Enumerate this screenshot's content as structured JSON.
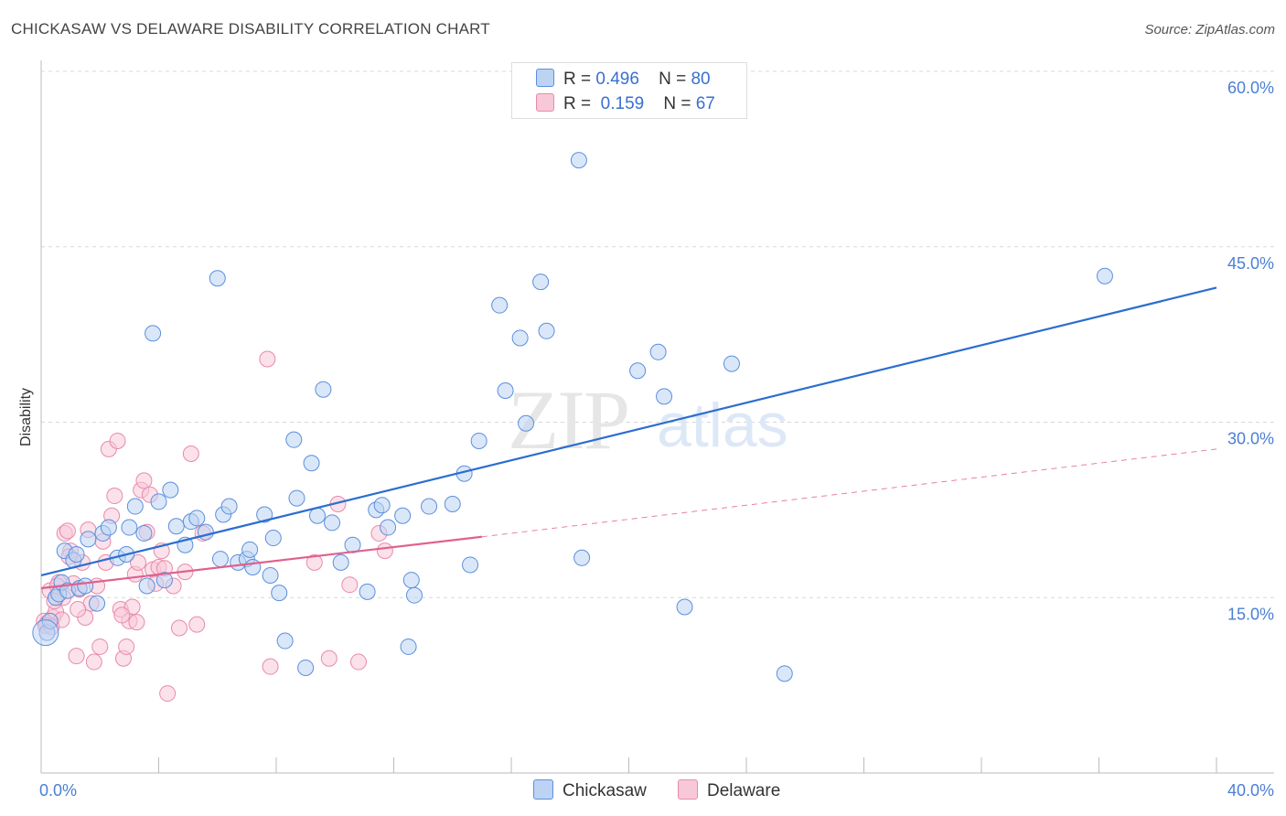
{
  "header": {
    "title": "CHICKASAW VS DELAWARE DISABILITY CORRELATION CHART",
    "source": "Source: ZipAtlas.com"
  },
  "legend": {
    "r_label": "R =",
    "n_label": "N =",
    "rows": [
      {
        "name": "Chickasaw",
        "r": "0.496",
        "n": "80"
      },
      {
        "name": "Delaware",
        "r": "0.159",
        "n": "67"
      }
    ]
  },
  "colors": {
    "chickasaw": "#5b8fde",
    "chickasaw_fill": "#bcd3f3",
    "chickasaw_line": "#2b6ed0",
    "delaware": "#e98aa9",
    "delaware_fill": "#f7c9d8",
    "delaware_line": "#e0608e",
    "grid": "#d9d9d9",
    "tick_text": "#4a7fd4"
  },
  "chart_data": {
    "type": "scatter",
    "title": "CHICKASAW VS DELAWARE DISABILITY CORRELATION CHART",
    "xlabel": "",
    "ylabel": "Disability",
    "xlim": [
      0,
      40
    ],
    "ylim": [
      0,
      60
    ],
    "x_tick_labels": [
      "0.0%",
      "40.0%"
    ],
    "y_ticks": [
      15,
      30,
      45,
      60
    ],
    "y_tick_labels": [
      "15.0%",
      "30.0%",
      "45.0%",
      "60.0%"
    ],
    "grid": "horizontal dashed",
    "watermark": "ZIPatlas",
    "series": [
      {
        "name": "Chickasaw",
        "trend": {
          "x": [
            0,
            40
          ],
          "y": [
            16.9,
            41.5
          ],
          "style": "solid"
        },
        "points": [
          [
            0.2,
            12.0
          ],
          [
            0.3,
            13.0
          ],
          [
            0.5,
            15.0
          ],
          [
            0.6,
            15.3
          ],
          [
            0.7,
            16.3
          ],
          [
            0.8,
            19.0
          ],
          [
            0.9,
            15.6
          ],
          [
            1.1,
            18.2
          ],
          [
            1.2,
            18.7
          ],
          [
            1.3,
            15.8
          ],
          [
            1.5,
            16.0
          ],
          [
            1.6,
            20.0
          ],
          [
            1.9,
            14.5
          ],
          [
            2.1,
            20.5
          ],
          [
            2.3,
            21.0
          ],
          [
            2.6,
            18.4
          ],
          [
            2.9,
            18.7
          ],
          [
            3.0,
            21.0
          ],
          [
            3.2,
            22.8
          ],
          [
            3.5,
            20.5
          ],
          [
            3.6,
            16.0
          ],
          [
            3.8,
            37.6
          ],
          [
            4.0,
            23.2
          ],
          [
            4.2,
            16.5
          ],
          [
            4.4,
            24.2
          ],
          [
            4.6,
            21.1
          ],
          [
            4.9,
            19.5
          ],
          [
            5.1,
            21.5
          ],
          [
            5.3,
            21.8
          ],
          [
            5.6,
            20.6
          ],
          [
            6.0,
            42.3
          ],
          [
            6.1,
            18.3
          ],
          [
            6.2,
            22.1
          ],
          [
            6.4,
            22.8
          ],
          [
            6.7,
            18.0
          ],
          [
            7.0,
            18.3
          ],
          [
            7.1,
            19.1
          ],
          [
            7.2,
            17.6
          ],
          [
            7.6,
            22.1
          ],
          [
            7.8,
            16.9
          ],
          [
            7.9,
            20.1
          ],
          [
            8.1,
            15.4
          ],
          [
            8.3,
            11.3
          ],
          [
            8.6,
            28.5
          ],
          [
            8.7,
            23.5
          ],
          [
            9.0,
            9.0
          ],
          [
            9.2,
            26.5
          ],
          [
            9.4,
            22.0
          ],
          [
            9.6,
            32.8
          ],
          [
            9.9,
            21.4
          ],
          [
            10.2,
            18.0
          ],
          [
            10.6,
            19.5
          ],
          [
            11.1,
            15.5
          ],
          [
            11.4,
            22.5
          ],
          [
            11.6,
            22.9
          ],
          [
            11.8,
            21.0
          ],
          [
            12.3,
            22.0
          ],
          [
            12.5,
            10.8
          ],
          [
            12.6,
            16.5
          ],
          [
            12.7,
            15.2
          ],
          [
            13.2,
            22.8
          ],
          [
            14.0,
            23.0
          ],
          [
            14.4,
            25.6
          ],
          [
            14.6,
            17.8
          ],
          [
            14.9,
            28.4
          ],
          [
            15.6,
            40.0
          ],
          [
            15.8,
            32.7
          ],
          [
            16.3,
            37.2
          ],
          [
            16.5,
            29.9
          ],
          [
            17.0,
            42.0
          ],
          [
            17.2,
            37.8
          ],
          [
            18.3,
            52.4
          ],
          [
            18.4,
            18.4
          ],
          [
            20.3,
            34.4
          ],
          [
            21.0,
            36.0
          ],
          [
            21.2,
            32.2
          ],
          [
            21.9,
            14.2
          ],
          [
            23.5,
            35.0
          ],
          [
            25.3,
            8.5
          ],
          [
            36.2,
            42.5
          ]
        ]
      },
      {
        "name": "Delaware",
        "trend": {
          "x": [
            0,
            15
          ],
          "y": [
            15.8,
            20.2
          ],
          "style": "solid",
          "extended": {
            "x": [
              15,
              40
            ],
            "y": [
              20.2,
              27.7
            ],
            "style": "dashed"
          }
        },
        "points": [
          [
            0.1,
            13.0
          ],
          [
            0.2,
            12.8
          ],
          [
            0.3,
            15.6
          ],
          [
            0.4,
            13.3
          ],
          [
            0.5,
            13.8
          ],
          [
            0.6,
            16.3
          ],
          [
            0.7,
            13.1
          ],
          [
            0.8,
            20.5
          ],
          [
            0.9,
            20.7
          ],
          [
            1.0,
            19.0
          ],
          [
            1.1,
            16.2
          ],
          [
            1.2,
            10.0
          ],
          [
            1.3,
            15.7
          ],
          [
            1.4,
            18.0
          ],
          [
            1.5,
            13.3
          ],
          [
            1.6,
            20.8
          ],
          [
            1.7,
            14.5
          ],
          [
            1.8,
            9.5
          ],
          [
            1.9,
            16.0
          ],
          [
            2.0,
            10.8
          ],
          [
            2.1,
            19.8
          ],
          [
            2.2,
            18.0
          ],
          [
            2.3,
            27.7
          ],
          [
            2.4,
            22.0
          ],
          [
            2.5,
            23.7
          ],
          [
            2.6,
            28.4
          ],
          [
            2.7,
            14.0
          ],
          [
            2.8,
            9.8
          ],
          [
            2.9,
            10.8
          ],
          [
            3.0,
            13.0
          ],
          [
            3.1,
            14.2
          ],
          [
            3.2,
            17.0
          ],
          [
            3.3,
            18.0
          ],
          [
            3.4,
            24.2
          ],
          [
            3.5,
            25.0
          ],
          [
            3.6,
            20.6
          ],
          [
            3.7,
            23.8
          ],
          [
            3.8,
            17.4
          ],
          [
            3.9,
            16.2
          ],
          [
            4.0,
            17.6
          ],
          [
            4.1,
            19.0
          ],
          [
            4.2,
            17.5
          ],
          [
            4.3,
            6.8
          ],
          [
            4.5,
            16.0
          ],
          [
            4.7,
            12.4
          ],
          [
            4.9,
            17.2
          ],
          [
            5.1,
            27.3
          ],
          [
            5.3,
            12.7
          ],
          [
            5.5,
            20.5
          ],
          [
            7.7,
            35.4
          ],
          [
            7.8,
            9.1
          ],
          [
            9.3,
            18.0
          ],
          [
            9.8,
            9.8
          ],
          [
            10.1,
            23.0
          ],
          [
            10.5,
            16.1
          ],
          [
            10.8,
            9.5
          ],
          [
            11.5,
            20.5
          ],
          [
            11.7,
            19.0
          ],
          [
            0.15,
            12.6
          ],
          [
            0.35,
            12.5
          ],
          [
            0.55,
            16.0
          ],
          [
            0.75,
            15.0
          ],
          [
            0.95,
            18.5
          ],
          [
            1.25,
            14.0
          ],
          [
            2.75,
            13.5
          ],
          [
            3.25,
            12.9
          ],
          [
            0.45,
            14.7
          ]
        ]
      }
    ]
  }
}
